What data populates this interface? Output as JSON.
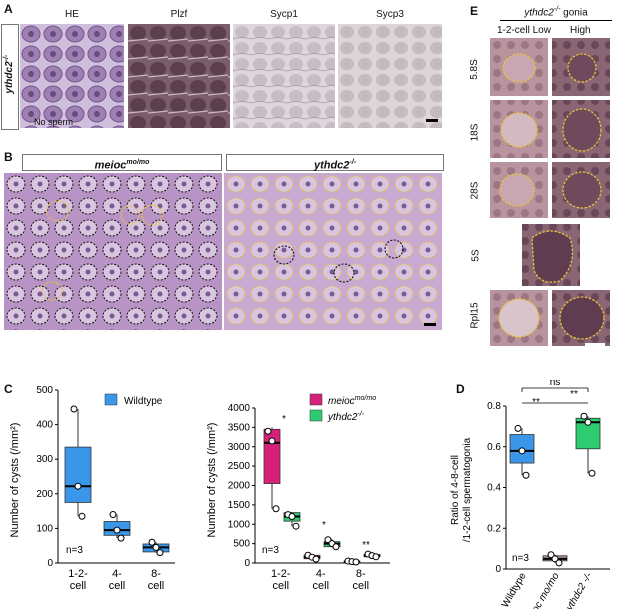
{
  "panelA": {
    "label": "A",
    "columns": [
      "HE",
      "Plzf",
      "Sycp1",
      "Sycp3"
    ],
    "row_label": "ythdc2",
    "row_label_sup": "-/-",
    "annotation": "No sperm"
  },
  "panelB": {
    "label": "B",
    "left_title": "meioc",
    "left_title_sup": "mo/mo",
    "right_title": "ythdc2",
    "right_title_sup": "-/-"
  },
  "panelE": {
    "label": "E",
    "header": "ythdc2",
    "header_sup": "-/-",
    "header_suffix": " gonia",
    "col_low": "1-2-cell Low",
    "col_high": "High",
    "rows": [
      "5.8S",
      "18S",
      "28S",
      "5S",
      "Rpl15"
    ]
  },
  "panelC": {
    "label": "C",
    "left": {
      "ylabel": "Number of cysts (/mm²)",
      "legend": "Wildtype",
      "n_note": "n=3",
      "color": "#3a96e8"
    },
    "right": {
      "ylabel": "Number of cysts (/mm²)",
      "legend_a": "meioc",
      "legend_a_sup": "mo/mo",
      "legend_b": "ythdc2",
      "legend_b_sup": "-/-",
      "n_note": "n=3",
      "sig": [
        "*",
        "*",
        "**"
      ],
      "color_a": "#d6207a",
      "color_b": "#2ecb71"
    }
  },
  "panelD": {
    "label": "D",
    "ylabel_line1": "Ratio of 4-8-cell",
    "ylabel_line2": "/1-2-cell spermatogonia",
    "n_note": "n=3",
    "sig_top": "ns",
    "sig_left": "**",
    "sig_right": "**"
  },
  "chart_data": [
    {
      "type": "box",
      "panel": "C-left",
      "categories": [
        "1-2-cell",
        "4-cell",
        "8-cell"
      ],
      "ylim": [
        0,
        500
      ],
      "yticks": [
        0,
        100,
        200,
        300,
        400,
        500
      ],
      "series": [
        {
          "name": "Wildtype",
          "boxes": [
            {
              "min": 135,
              "q1": 175,
              "median": 222,
              "q3": 335,
              "max": 445,
              "points": [
                445,
                222,
                135
              ]
            },
            {
              "min": 72,
              "q1": 80,
              "median": 95,
              "q3": 120,
              "max": 140,
              "points": [
                140,
                95,
                72
              ]
            },
            {
              "min": 30,
              "q1": 32,
              "median": 45,
              "q3": 55,
              "max": 60,
              "points": [
                60,
                45,
                30
              ]
            }
          ]
        }
      ]
    },
    {
      "type": "box",
      "panel": "C-right",
      "categories": [
        "1-2-cell",
        "4-cell",
        "8-cell"
      ],
      "ylim": [
        0,
        4000
      ],
      "yticks": [
        0,
        500,
        1000,
        1500,
        2000,
        2500,
        3000,
        3500,
        4000
      ],
      "series": [
        {
          "name": "meioc mo/mo",
          "boxes": [
            {
              "min": 1400,
              "q1": 2050,
              "median": 3100,
              "q3": 3450,
              "max": 3500,
              "points": [
                3400,
                3150,
                1400
              ]
            },
            {
              "min": 100,
              "q1": 110,
              "median": 150,
              "q3": 200,
              "max": 230,
              "points": [
                200,
                150,
                100
              ]
            },
            {
              "min": 20,
              "q1": 25,
              "median": 35,
              "q3": 45,
              "max": 55,
              "points": [
                50,
                35,
                25
              ]
            }
          ]
        },
        {
          "name": "ythdc2 -/-",
          "boxes": [
            {
              "min": 950,
              "q1": 1080,
              "median": 1200,
              "q3": 1300,
              "max": 1320,
              "points": [
                1250,
                1200,
                950
              ]
            },
            {
              "min": 400,
              "q1": 420,
              "median": 500,
              "q3": 550,
              "max": 620,
              "points": [
                600,
                500,
                420
              ]
            },
            {
              "min": 150,
              "q1": 160,
              "median": 190,
              "q3": 220,
              "max": 240,
              "points": [
                230,
                190,
                160
              ]
            }
          ]
        }
      ]
    },
    {
      "type": "box",
      "panel": "D",
      "categories": [
        "Wildtype",
        "meioc mo/mo",
        "ythdc2 -/-"
      ],
      "ylim": [
        0,
        0.8
      ],
      "yticks": [
        0,
        0.2,
        0.4,
        0.6,
        0.8
      ],
      "series": [
        {
          "name": "ratio",
          "boxes": [
            {
              "min": 0.46,
              "q1": 0.52,
              "median": 0.58,
              "q3": 0.66,
              "max": 0.69,
              "points": [
                0.69,
                0.58,
                0.46
              ]
            },
            {
              "min": 0.03,
              "q1": 0.04,
              "median": 0.05,
              "q3": 0.065,
              "max": 0.07,
              "points": [
                0.07,
                0.05,
                0.03
              ]
            },
            {
              "min": 0.47,
              "q1": 0.59,
              "median": 0.72,
              "q3": 0.74,
              "max": 0.75,
              "points": [
                0.75,
                0.72,
                0.47
              ]
            }
          ]
        }
      ]
    }
  ]
}
